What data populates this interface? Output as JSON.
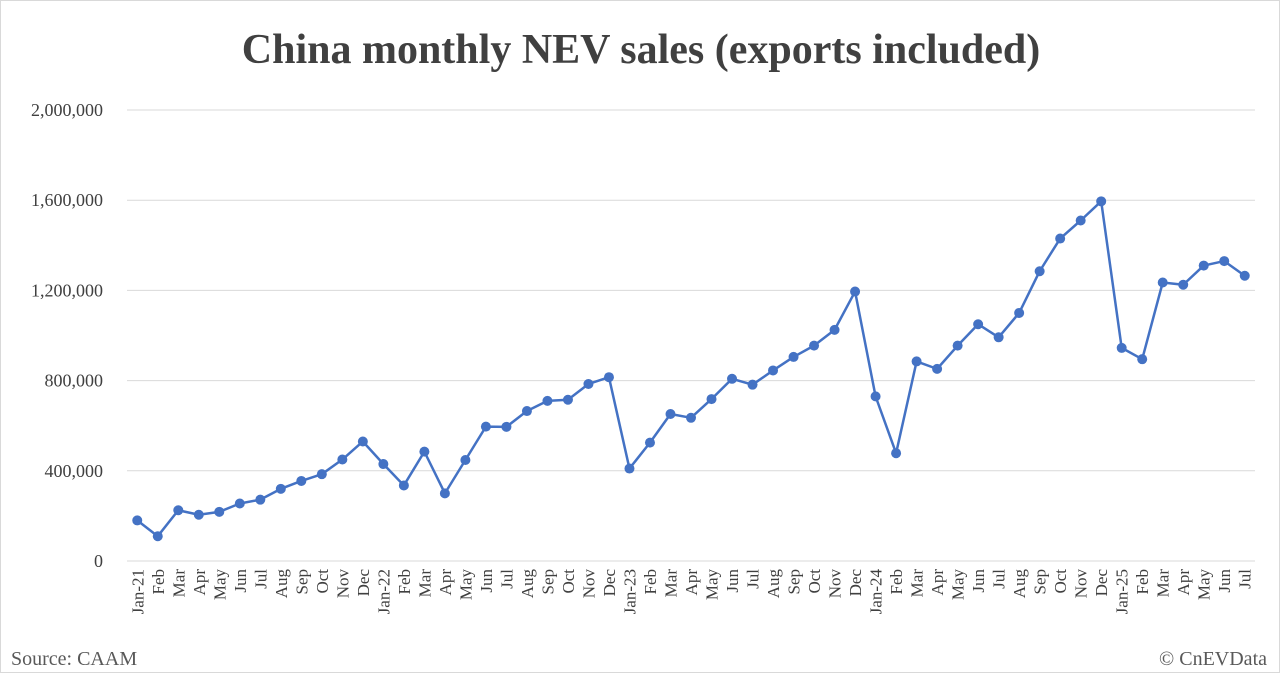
{
  "chart_data": {
    "type": "line",
    "title": "China monthly NEV sales (exports included)",
    "xlabel": "",
    "ylabel": "",
    "ylim": [
      0,
      2000000
    ],
    "yticks": [
      "0",
      "400,000",
      "800,000",
      "1,200,000",
      "1,600,000",
      "2,000,000"
    ],
    "ytick_values": [
      0,
      400000,
      800000,
      1200000,
      1600000,
      2000000
    ],
    "grid": true,
    "legend": "none",
    "categories": [
      "Jan-21",
      "Feb",
      "Mar",
      "Apr",
      "May",
      "Jun",
      "Jul",
      "Aug",
      "Sep",
      "Oct",
      "Nov",
      "Dec",
      "Jan-22",
      "Feb",
      "Mar",
      "Apr",
      "May",
      "Jun",
      "Jul",
      "Aug",
      "Sep",
      "Oct",
      "Nov",
      "Dec",
      "Jan-23",
      "Feb",
      "Mar",
      "Apr",
      "May",
      "Jun",
      "Jul",
      "Aug",
      "Sep",
      "Oct",
      "Nov",
      "Dec",
      "Jan-24",
      "Feb",
      "Mar",
      "Apr",
      "May",
      "Jun",
      "Jul",
      "Aug",
      "Sep",
      "Oct",
      "Nov",
      "Dec",
      "Jan-25",
      "Feb",
      "Mar",
      "Apr",
      "May",
      "Jun",
      "Jul"
    ],
    "series": [
      {
        "color": "#4472c4",
        "values": [
          180000,
          110000,
          225000,
          205000,
          218000,
          255000,
          272000,
          320000,
          355000,
          385000,
          450000,
          530000,
          430000,
          335000,
          485000,
          300000,
          448000,
          596000,
          595000,
          665000,
          710000,
          715000,
          785000,
          815000,
          410000,
          525000,
          652000,
          635000,
          718000,
          808000,
          782000,
          845000,
          905000,
          955000,
          1025000,
          1195000,
          730000,
          478000,
          885000,
          852000,
          955000,
          1050000,
          992000,
          1100000,
          1285000,
          1430000,
          1510000,
          1595000,
          945000,
          895000,
          1235000,
          1225000,
          1310000,
          1330000,
          1265000
        ]
      }
    ]
  },
  "footer": {
    "source": "Source: CAAM",
    "credit": "© CnEVData"
  },
  "colors": {
    "line": "#4472c4",
    "grid": "#d9d9d9",
    "text": "#404040"
  }
}
